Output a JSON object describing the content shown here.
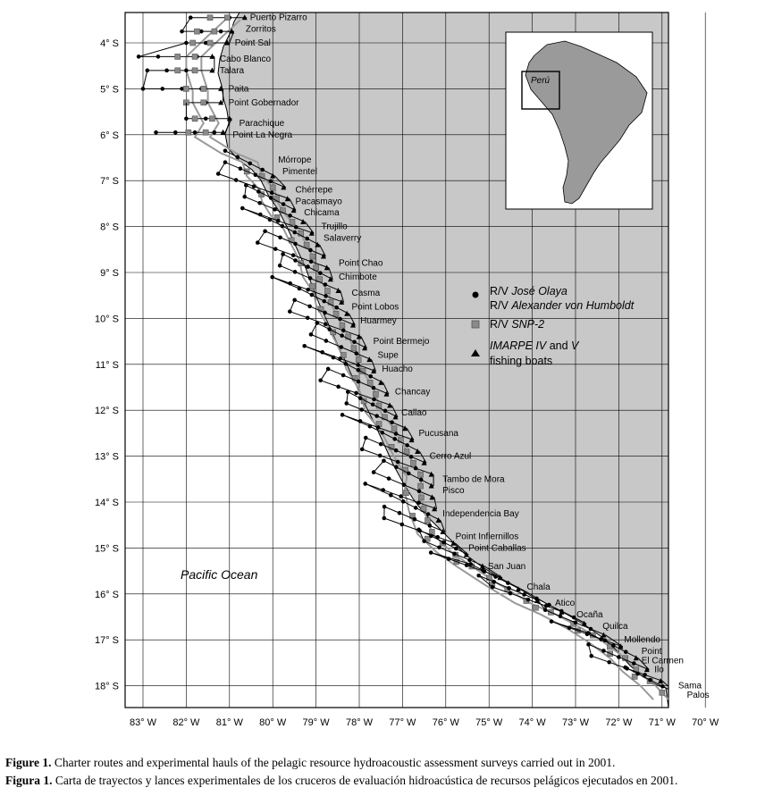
{
  "map": {
    "lat_ticks": [
      "4° S",
      "5° S",
      "6° S",
      "7° S",
      "8° S",
      "9° S",
      "10° S",
      "11° S",
      "12° S",
      "13° S",
      "14° S",
      "15° S",
      "16° S",
      "17° S",
      "18° S"
    ],
    "lon_ticks": [
      "83° W",
      "82° W",
      "81° W",
      "80° W",
      "79° W",
      "78° W",
      "77° W",
      "76° W",
      "75° W",
      "74° W",
      "73° W",
      "72° W",
      "71° W",
      "70° W"
    ],
    "ocean_label": "Pacific Ocean",
    "inset_label": "Perú",
    "land_color": "#c8c8c8",
    "places": [
      {
        "name": "Puerto Pizarro",
        "lon": -80.65,
        "lat": -3.45
      },
      {
        "name": "Zorritos",
        "lon": -80.75,
        "lat": -3.7
      },
      {
        "name": "Point Sal",
        "lon": -81.0,
        "lat": -4.0
      },
      {
        "name": "Cabo Blanco",
        "lon": -81.35,
        "lat": -4.35
      },
      {
        "name": "Talara",
        "lon": -81.35,
        "lat": -4.6
      },
      {
        "name": "Paita",
        "lon": -81.15,
        "lat": -5.0
      },
      {
        "name": "Point Gobernador",
        "lon": -81.15,
        "lat": -5.3
      },
      {
        "name": "Parachique",
        "lon": -80.9,
        "lat": -5.75
      },
      {
        "name": "Point La Negra",
        "lon": -81.05,
        "lat": -6.0
      },
      {
        "name": "Mórrope",
        "lon": -80.0,
        "lat": -6.55
      },
      {
        "name": "Pimentel",
        "lon": -79.9,
        "lat": -6.8
      },
      {
        "name": "Chérrepe",
        "lon": -79.6,
        "lat": -7.2
      },
      {
        "name": "Pacasmayo",
        "lon": -79.6,
        "lat": -7.45
      },
      {
        "name": "Chicama",
        "lon": -79.4,
        "lat": -7.7
      },
      {
        "name": "Trujillo",
        "lon": -79.0,
        "lat": -8.0
      },
      {
        "name": "Salaverry",
        "lon": -78.95,
        "lat": -8.25
      },
      {
        "name": "Point Chao",
        "lon": -78.6,
        "lat": -8.8
      },
      {
        "name": "Chimbote",
        "lon": -78.6,
        "lat": -9.1
      },
      {
        "name": "Casma",
        "lon": -78.3,
        "lat": -9.45
      },
      {
        "name": "Point Lobos",
        "lon": -78.3,
        "lat": -9.75
      },
      {
        "name": "Huarmey",
        "lon": -78.1,
        "lat": -10.05
      },
      {
        "name": "Point Bermejo",
        "lon": -77.8,
        "lat": -10.5
      },
      {
        "name": "Supe",
        "lon": -77.7,
        "lat": -10.8
      },
      {
        "name": "Huacho",
        "lon": -77.6,
        "lat": -11.1
      },
      {
        "name": "Chancay",
        "lon": -77.3,
        "lat": -11.6
      },
      {
        "name": "Callao",
        "lon": -77.15,
        "lat": -12.05
      },
      {
        "name": "Pucusana",
        "lon": -76.75,
        "lat": -12.5
      },
      {
        "name": "Cerro Azul",
        "lon": -76.5,
        "lat": -13.0
      },
      {
        "name": "Tambo de Mora",
        "lon": -76.2,
        "lat": -13.5
      },
      {
        "name": "Pisco",
        "lon": -76.2,
        "lat": -13.75
      },
      {
        "name": "Independencia Bay",
        "lon": -76.2,
        "lat": -14.25
      },
      {
        "name": "Point Infiernillos",
        "lon": -75.9,
        "lat": -14.75
      },
      {
        "name": "Point Caballas",
        "lon": -75.6,
        "lat": -15.0
      },
      {
        "name": "San Juan",
        "lon": -75.15,
        "lat": -15.4
      },
      {
        "name": "Chala",
        "lon": -74.25,
        "lat": -15.85
      },
      {
        "name": "Atico",
        "lon": -73.6,
        "lat": -16.2
      },
      {
        "name": "Ocaña",
        "lon": -73.1,
        "lat": -16.45
      },
      {
        "name": "Quilca",
        "lon": -72.5,
        "lat": -16.7
      },
      {
        "name": "Mollendo",
        "lon": -72.0,
        "lat": -17.0
      },
      {
        "name": "Point",
        "lon": -71.6,
        "lat": -17.25
      },
      {
        "name": "El Carmen",
        "lon": -71.6,
        "lat": -17.45
      },
      {
        "name": "Ilo",
        "lon": -71.3,
        "lat": -17.65
      },
      {
        "name": "Sama",
        "lon": -70.75,
        "lat": -18.0
      },
      {
        "name": "Palos",
        "lon": -70.55,
        "lat": -18.2
      }
    ],
    "legend": [
      {
        "symbol": "circle",
        "line1_pre": "R/V ",
        "line1_it": "José Olaya",
        "line2_pre": "R/V ",
        "line2_it": "Alexander von Humboldt",
        "line2_post": ""
      },
      {
        "symbol": "square",
        "line1_pre": "R/V ",
        "line1_it": "SNP-2",
        "line1_post": ""
      },
      {
        "symbol": "triangle",
        "line1_pre": "",
        "line1_it": "IMARPE IV",
        "line1_post": " and ",
        "line1_it2": "V",
        "line2_pre": "fishing boats"
      }
    ]
  },
  "caption": {
    "en_label": "Figure 1.",
    "en_text": " Charter routes and experimental hauls of the pelagic resource hydroacoustic assessment surveys carried out in 2001.",
    "es_label": "Figura 1.",
    "es_text": " Carta de trayectos y lances experimentales de los cruceros de evaluación hidroacústica de recursos pelágicos ejecutados en 2001."
  }
}
